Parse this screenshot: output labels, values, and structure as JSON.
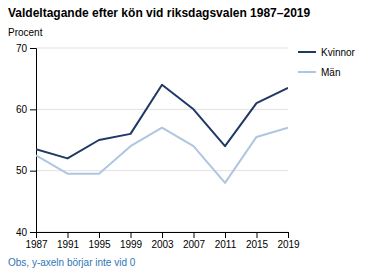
{
  "chart_data": {
    "type": "line",
    "title": "Valdeltagande efter kön vid riksdagsvalen 1987–2019",
    "y_label": "Procent",
    "annotations": [
      {
        "text": "Obs, y-axeln börjar inte vid 0",
        "color": "#2e75b6"
      }
    ],
    "x": [
      1987,
      1991,
      1995,
      1999,
      2003,
      2007,
      2011,
      2015,
      2019
    ],
    "series": [
      {
        "name": "Kvinnor",
        "color": "#1f3864",
        "values": [
          53.5,
          52.0,
          55.0,
          56.0,
          64.0,
          60.0,
          54.0,
          61.0,
          63.5
        ]
      },
      {
        "name": "Män",
        "color": "#aec6e0",
        "values": [
          52.5,
          49.5,
          49.5,
          54.0,
          57.0,
          54.0,
          48.0,
          55.5,
          57.0
        ]
      }
    ],
    "xlim": [
      1987,
      2019
    ],
    "xticks": [
      1987,
      1991,
      1995,
      1999,
      2003,
      2007,
      2011,
      2015,
      2019
    ],
    "ylim": [
      40,
      70
    ],
    "yticks": [
      40,
      50,
      60,
      70
    ],
    "grid": true,
    "legend": "right"
  }
}
